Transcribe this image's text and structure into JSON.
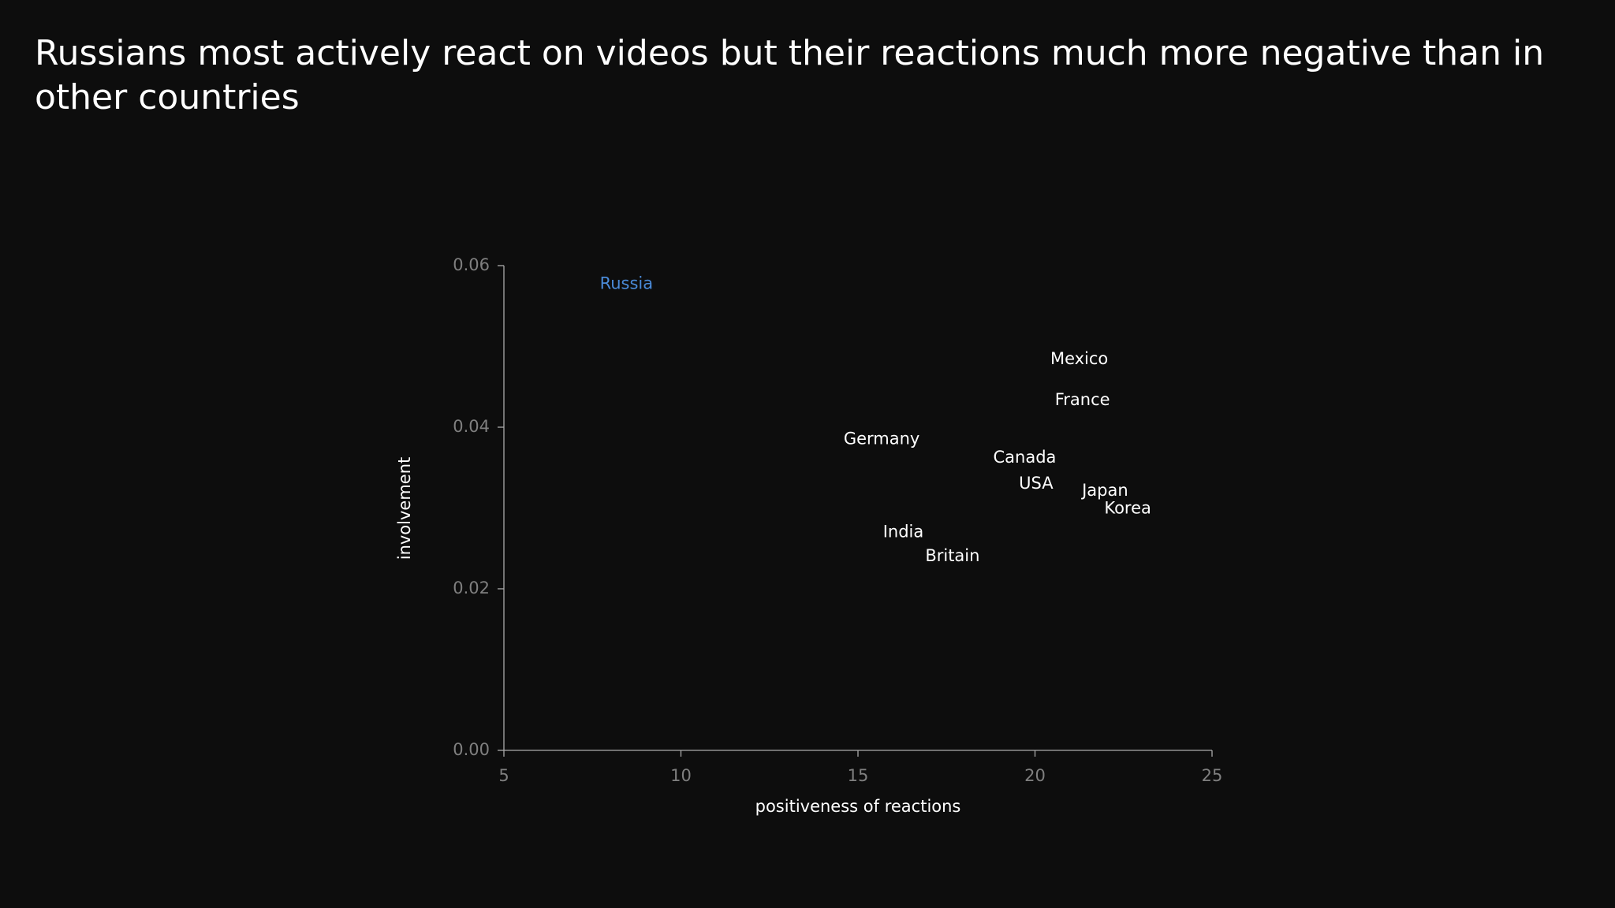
{
  "chart_data": {
    "type": "scatter",
    "title": "Russians most actively react on videos but their reactions much more negative than in other countries",
    "x_label": "positiveness of reactions",
    "y_label": "involvement",
    "labels": [
      "Russia",
      "Mexico",
      "France",
      "Germany",
      "Canada",
      "USA",
      "Japan",
      "Korea",
      "India",
      "Britain"
    ],
    "x": [
      8.46,
      21.25,
      21.34,
      15.67,
      19.71,
      20.03,
      21.98,
      22.62,
      16.28,
      17.67
    ],
    "values": [
      0.0577,
      0.0484,
      0.0433,
      0.0385,
      0.0362,
      0.033,
      0.0321,
      0.0299,
      0.027,
      0.024
    ],
    "point_colors": [
      "#4a8ad8",
      "#ffffff",
      "#ffffff",
      "#ffffff",
      "#ffffff",
      "#ffffff",
      "#ffffff",
      "#ffffff",
      "#ffffff",
      "#ffffff"
    ],
    "xlim": [
      5,
      25
    ],
    "xticks": [
      5,
      10,
      15,
      20,
      25
    ],
    "ylim": [
      0,
      0.06
    ],
    "yticks": [
      {
        "value": 0,
        "label": "0.00"
      },
      0.02,
      0.04,
      0.06
    ]
  }
}
